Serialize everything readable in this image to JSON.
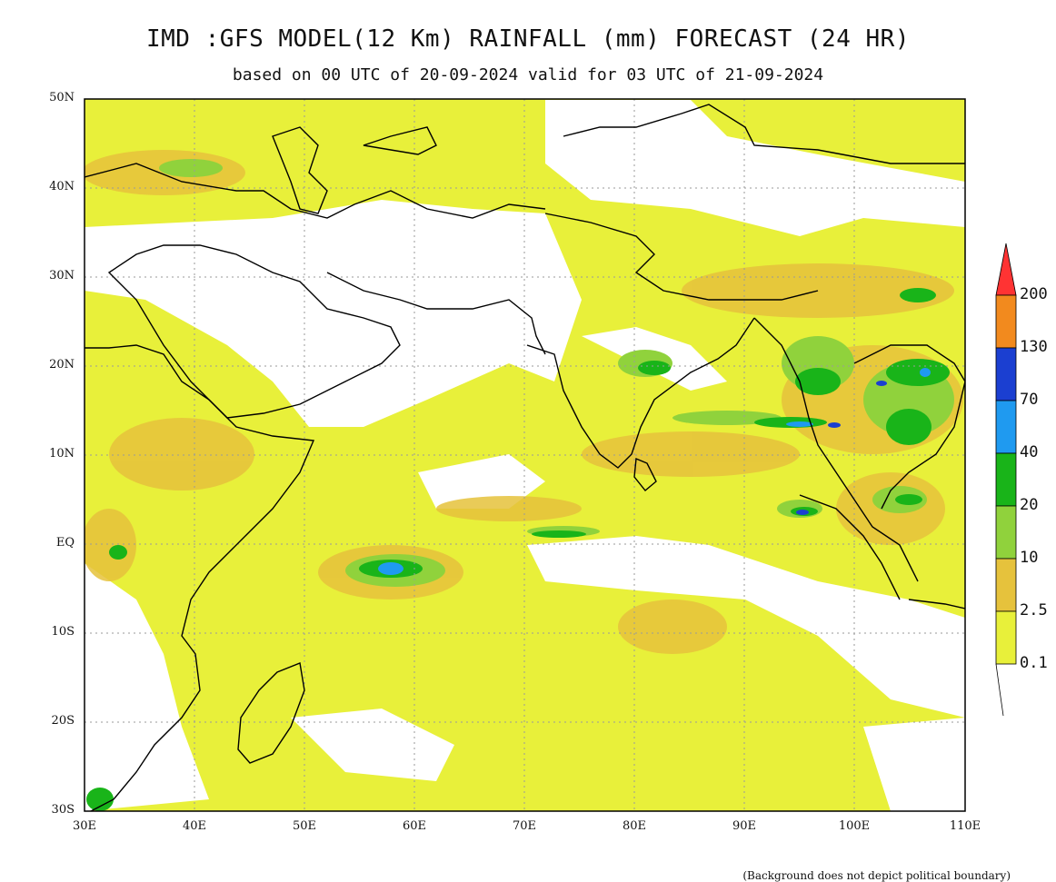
{
  "title": "IMD :GFS MODEL(12 Km) RAINFALL (mm) FORECAST (24 HR)",
  "subtitle": "based on 00 UTC of 20-09-2024 valid for 03 UTC of 21-09-2024",
  "footnote": "(Background does not depict political boundary)",
  "axes": {
    "lat_labels": [
      "50N",
      "40N",
      "30N",
      "20N",
      "10N",
      "EQ",
      "10S",
      "20S",
      "30S"
    ],
    "lon_labels": [
      "30E",
      "40E",
      "50E",
      "60E",
      "70E",
      "80E",
      "90E",
      "100E",
      "110E"
    ]
  },
  "colorbar": {
    "levels": [
      "200",
      "130",
      "70",
      "40",
      "20",
      "10",
      "2.5",
      "0.1"
    ],
    "colors": [
      "#ff3333",
      "#f28a1e",
      "#1b3fd1",
      "#1f9af0",
      "#19b419",
      "#90d23c",
      "#e6c23c",
      "#e8f03a"
    ]
  },
  "colors": {
    "land_outline": "#000000",
    "no_rain": "#ffffff",
    "light_rain": "#e8f03a",
    "moderate_rain": "#e6c23c"
  }
}
